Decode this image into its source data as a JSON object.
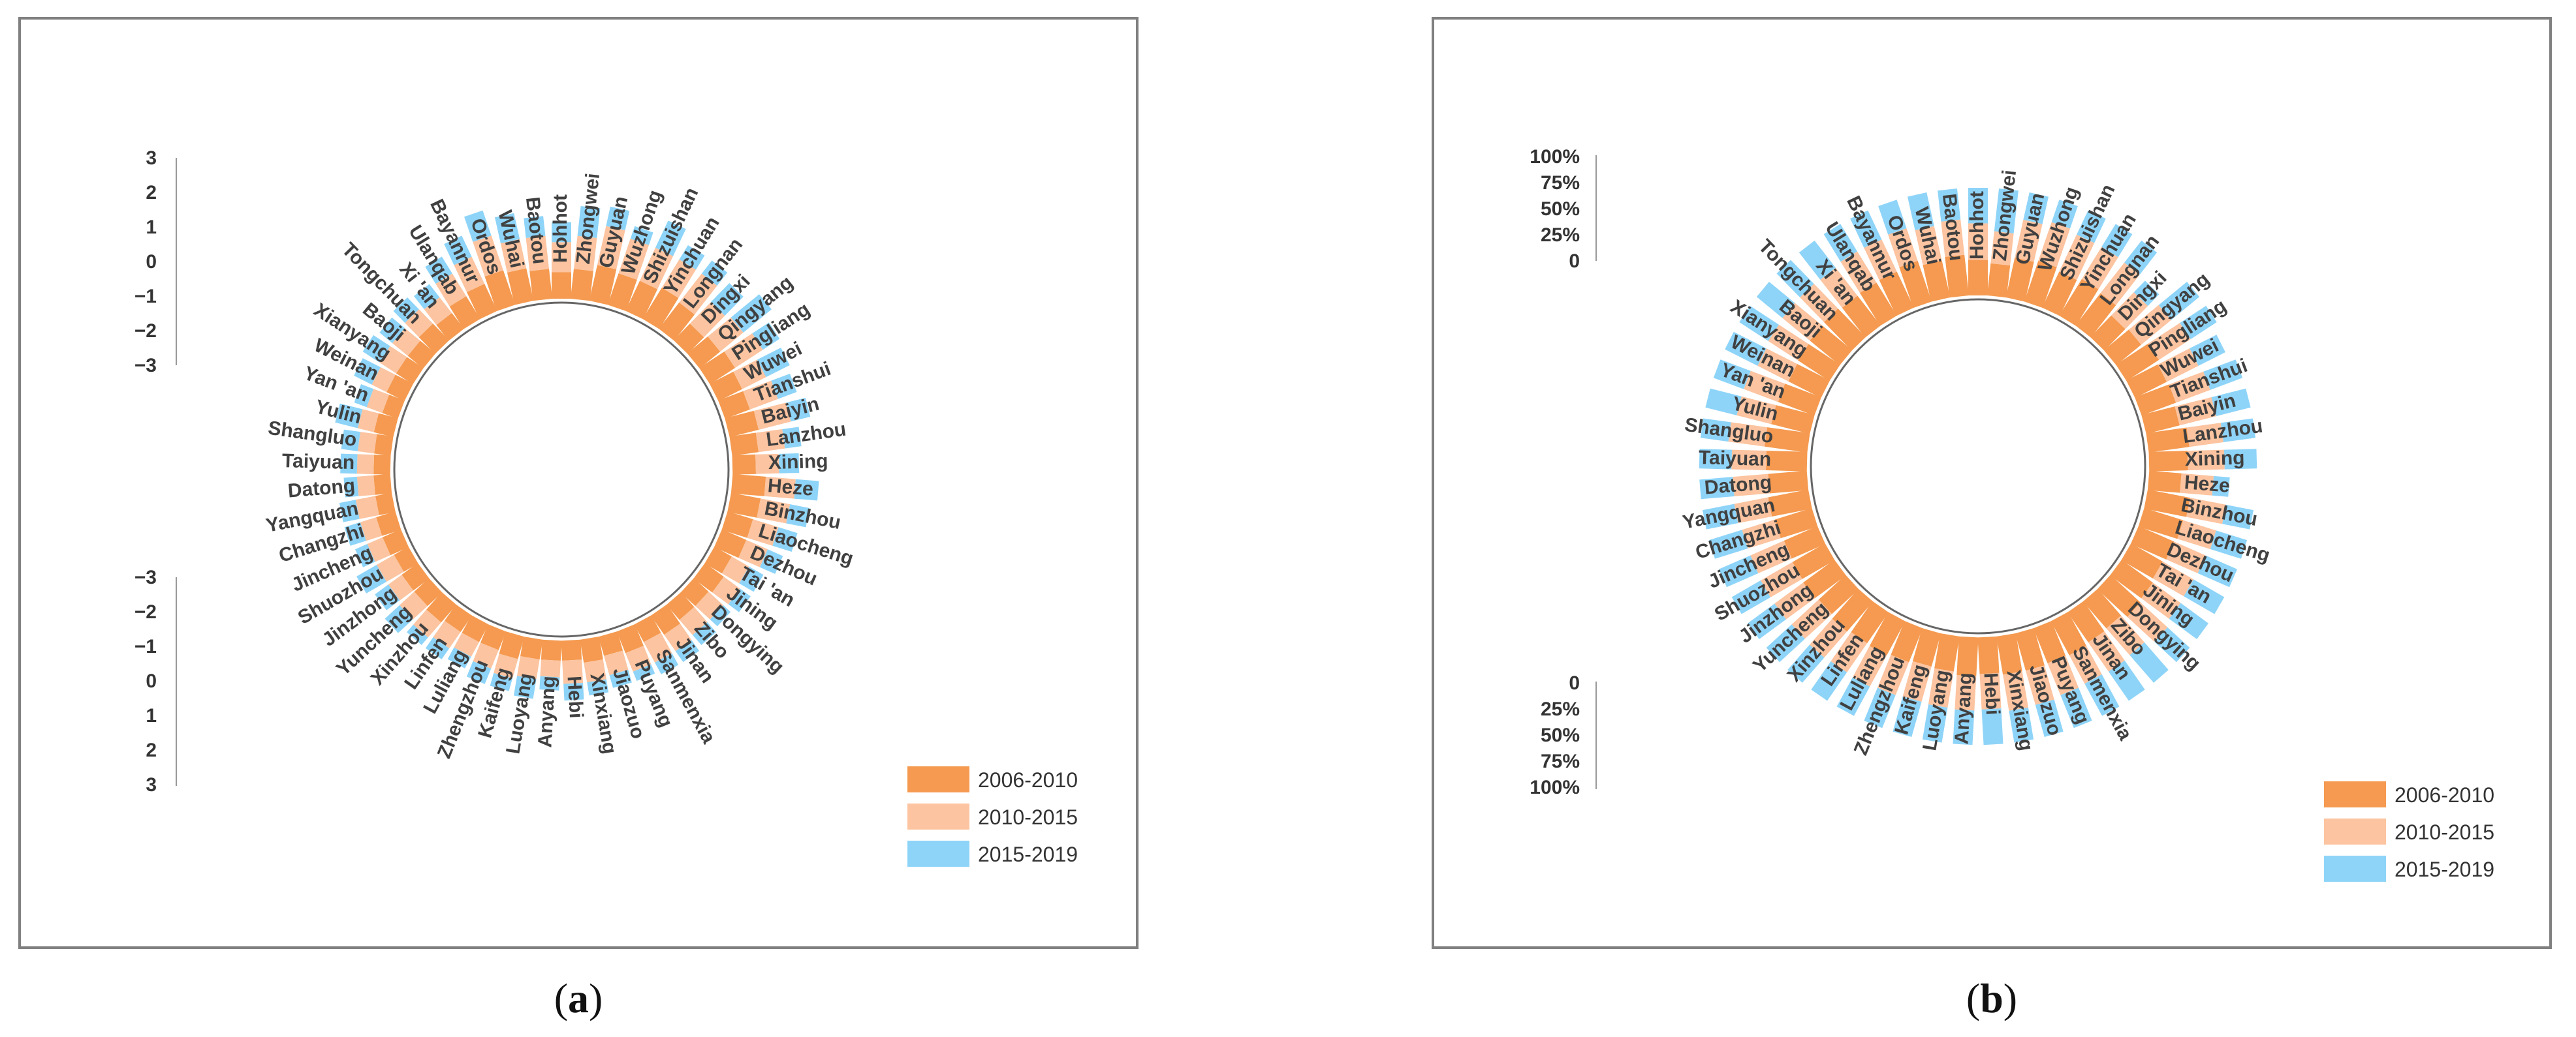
{
  "colors": {
    "s2006": "#f59a50",
    "s2010": "#fcc4a0",
    "s2015": "#8ed4f8",
    "frame": "#808080",
    "axis": "#999999"
  },
  "chart_data": [
    {
      "type": "radial-stacked-bar",
      "caption": "(a)",
      "caption_letter": "a",
      "title": "",
      "categories": [
        "Hohhot",
        "Zhongwei",
        "Guyuan",
        "Wuzhong",
        "Shizuishan",
        "Yinchuan",
        "Longnan",
        "Dingxi",
        "Qingyang",
        "Pingliang",
        "Wuwei",
        "Tianshui",
        "Baiyin",
        "Lanzhou",
        "Xining",
        "Heze",
        "Binzhou",
        "Liaocheng",
        "Dezhou",
        "Tai 'an",
        "Jining",
        "Dongying",
        "Zibo",
        "Jinan",
        "Sanmenxia",
        "Puyang",
        "Jiaozuo",
        "Xinxiang",
        "Hebi",
        "Anyang",
        "Luoyang",
        "Kaifeng",
        "Zhengzhou",
        "Luliang",
        "Linfen",
        "Xinzhou",
        "Yuncheng",
        "Jinzhong",
        "Shuozhou",
        "Jincheng",
        "Changzhi",
        "Yangquan",
        "Datong",
        "Taiyuan",
        "Shangluo",
        "Yulin",
        "Yan 'an",
        "Weinan",
        "Xianyang",
        "Baoji",
        "Tongchuan",
        "Xi 'an",
        "Ulanqab",
        "Bayannur",
        "Ordos",
        "Wuhai",
        "Baotou"
      ],
      "series": [
        {
          "name": "2006-2010",
          "values": [
            0.8,
            0.9,
            1.1,
            1.0,
            1.0,
            1.1,
            1.0,
            0.7,
            0.8,
            0.9,
            0.8,
            0.8,
            0.9,
            0.8,
            0.7,
            1.0,
            0.9,
            0.8,
            0.8,
            0.6,
            0.7,
            0.6,
            0.6,
            0.7,
            0.6,
            0.7,
            0.6,
            0.7,
            0.6,
            0.6,
            0.6,
            0.7,
            0.6,
            0.6,
            0.6,
            0.7,
            0.6,
            0.6,
            0.5,
            0.6,
            0.6,
            0.5,
            0.5,
            0.5,
            0.5,
            0.6,
            0.5,
            0.6,
            0.6,
            0.6,
            0.7,
            0.6,
            0.8,
            0.9,
            1.1,
            1.0,
            0.9
          ]
        },
        {
          "name": "2010-2015",
          "values": [
            0.9,
            1.0,
            1.2,
            1.1,
            1.1,
            1.0,
            1.1,
            0.9,
            0.9,
            1.0,
            0.8,
            0.9,
            1.0,
            0.8,
            0.7,
            0.9,
            0.9,
            0.8,
            0.7,
            0.6,
            0.6,
            0.6,
            0.6,
            0.6,
            0.7,
            0.6,
            0.6,
            0.6,
            0.7,
            0.5,
            0.6,
            0.6,
            0.6,
            0.5,
            0.6,
            0.6,
            0.6,
            0.5,
            0.6,
            0.5,
            0.5,
            0.6,
            0.5,
            0.5,
            0.5,
            0.5,
            0.5,
            0.5,
            0.6,
            0.6,
            0.6,
            0.6,
            0.8,
            0.9,
            1.1,
            0.9,
            1.0
          ]
        },
        {
          "name": "2015-2019",
          "values": [
            0.6,
            0.9,
            0.6,
            0.4,
            0.9,
            0.5,
            0.5,
            0.8,
            1.1,
            0.6,
            0.8,
            0.6,
            0.6,
            0.5,
            0.6,
            0.7,
            0.6,
            0.6,
            0.5,
            0.5,
            0.4,
            0.3,
            0.4,
            0.4,
            0.4,
            0.3,
            0.4,
            0.4,
            0.5,
            0.4,
            0.6,
            0.4,
            0.5,
            0.4,
            0.4,
            0.3,
            0.6,
            0.5,
            0.7,
            0.4,
            0.5,
            0.5,
            0.4,
            0.5,
            0.5,
            0.7,
            0.4,
            0.6,
            0.6,
            0.5,
            0.5,
            0.5,
            0.6,
            0.7,
            0.8,
            0.8,
            0.6
          ]
        }
      ],
      "axis_top": {
        "ticks": [
          "3",
          "2",
          "1",
          "0",
          "−1",
          "−2",
          "−3"
        ],
        "range": [
          -3,
          3
        ]
      },
      "axis_bottom": {
        "ticks": [
          "−3",
          "−2",
          "−1",
          "0",
          "1",
          "2",
          "3"
        ],
        "range": [
          -3,
          3
        ]
      },
      "legend": [
        "2006-2010",
        "2010-2015",
        "2015-2019"
      ],
      "legend_position": "bottom-right",
      "grid": false
    },
    {
      "type": "radial-stacked-bar",
      "caption": "(b)",
      "caption_letter": "b",
      "title": "",
      "categories": [
        "Hohhot",
        "Zhongwei",
        "Guyuan",
        "Wuzhong",
        "Shizuishan",
        "Yinchuan",
        "Longnan",
        "Dingxi",
        "Qingyang",
        "Pingliang",
        "Wuwei",
        "Tianshui",
        "Baiyin",
        "Lanzhou",
        "Xining",
        "Heze",
        "Binzhou",
        "Liaocheng",
        "Dezhou",
        "Tai 'an",
        "Jining",
        "Dongying",
        "Zibo",
        "Jinan",
        "Sanmenxia",
        "Puyang",
        "Jiaozuo",
        "Xinxiang",
        "Hebi",
        "Anyang",
        "Luoyang",
        "Kaifeng",
        "Zhengzhou",
        "Luliang",
        "Linfen",
        "Xinzhou",
        "Yuncheng",
        "Jinzhong",
        "Shuozhou",
        "Jincheng",
        "Changzhi",
        "Yangquan",
        "Datong",
        "Taiyuan",
        "Shangluo",
        "Yulin",
        "Yan 'an",
        "Weinan",
        "Xianyang",
        "Baoji",
        "Tongchuan",
        "Xi 'an",
        "Ulanqab",
        "Bayannur",
        "Ordos",
        "Wuhai",
        "Baotou"
      ],
      "series": [
        {
          "name": "2006-2010",
          "values": [
            0.33,
            0.3,
            0.38,
            0.4,
            0.37,
            0.4,
            0.38,
            0.28,
            0.3,
            0.36,
            0.33,
            0.34,
            0.32,
            0.38,
            0.36,
            0.3,
            0.4,
            0.38,
            0.36,
            0.34,
            0.36,
            0.38,
            0.33,
            0.34,
            0.36,
            0.35,
            0.36,
            0.36,
            0.34,
            0.36,
            0.33,
            0.32,
            0.34,
            0.36,
            0.35,
            0.37,
            0.34,
            0.36,
            0.35,
            0.34,
            0.36,
            0.38,
            0.36,
            0.38,
            0.4,
            0.37,
            0.36,
            0.34,
            0.35,
            0.36,
            0.37,
            0.35,
            0.36,
            0.37,
            0.4,
            0.35,
            0.38
          ]
        },
        {
          "name": "2010-2015",
          "values": [
            0.34,
            0.3,
            0.36,
            0.38,
            0.38,
            0.35,
            0.36,
            0.3,
            0.36,
            0.35,
            0.33,
            0.34,
            0.35,
            0.32,
            0.34,
            0.3,
            0.34,
            0.32,
            0.32,
            0.33,
            0.32,
            0.34,
            0.33,
            0.33,
            0.3,
            0.32,
            0.33,
            0.34,
            0.33,
            0.32,
            0.34,
            0.34,
            0.33,
            0.33,
            0.33,
            0.32,
            0.34,
            0.33,
            0.34,
            0.34,
            0.32,
            0.32,
            0.33,
            0.32,
            0.34,
            0.33,
            0.34,
            0.32,
            0.33,
            0.33,
            0.32,
            0.33,
            0.34,
            0.33,
            0.32,
            0.33,
            0.33
          ]
        },
        {
          "name": "2015-2019",
          "values": [
            0.33,
            0.4,
            0.26,
            0.22,
            0.25,
            0.25,
            0.26,
            0.15,
            0.34,
            0.29,
            0.28,
            0.32,
            0.33,
            0.3,
            0.3,
            0.15,
            0.26,
            0.3,
            0.32,
            0.33,
            0.32,
            0.28,
            0.34,
            0.33,
            0.34,
            0.33,
            0.31,
            0.3,
            0.33,
            0.32,
            0.33,
            0.34,
            0.33,
            0.31,
            0.32,
            0.31,
            0.32,
            0.31,
            0.31,
            0.32,
            0.32,
            0.3,
            0.31,
            0.3,
            0.26,
            0.3,
            0.3,
            0.34,
            0.32,
            0.31,
            0.31,
            0.32,
            0.3,
            0.3,
            0.28,
            0.32,
            0.29
          ]
        }
      ],
      "axis_top": {
        "ticks": [
          "100%",
          "75%",
          "50%",
          "25%",
          "0"
        ],
        "range": [
          0,
          1
        ]
      },
      "axis_bottom": {
        "ticks": [
          "0",
          "25%",
          "50%",
          "75%",
          "100%"
        ],
        "range": [
          0,
          1
        ]
      },
      "legend": [
        "2006-2010",
        "2010-2015",
        "2015-2019"
      ],
      "legend_position": "bottom-right",
      "grid": false
    }
  ]
}
